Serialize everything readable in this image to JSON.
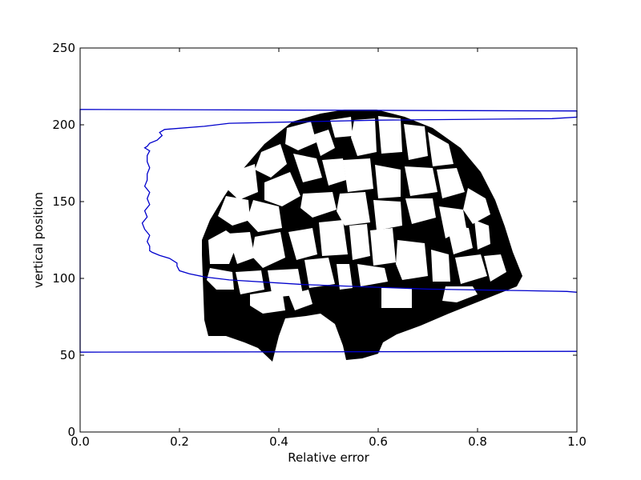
{
  "chart_data": {
    "type": "line",
    "xlabel": "Relative error",
    "ylabel": "vertical position",
    "xlim": [
      0.0,
      1.0
    ],
    "ylim": [
      0,
      250
    ],
    "x_ticks": [
      {
        "value": 0.0,
        "label": "0.0"
      },
      {
        "value": 0.2,
        "label": "0.2"
      },
      {
        "value": 0.4,
        "label": "0.4"
      },
      {
        "value": 0.6,
        "label": "0.6"
      },
      {
        "value": 0.8,
        "label": "0.8"
      },
      {
        "value": 1.0,
        "label": "1.0"
      }
    ],
    "y_ticks": [
      {
        "value": 0,
        "label": "0"
      },
      {
        "value": 50,
        "label": "50"
      },
      {
        "value": 100,
        "label": "100"
      },
      {
        "value": 150,
        "label": "150"
      },
      {
        "value": 200,
        "label": "200"
      },
      {
        "value": 250,
        "label": "250"
      }
    ],
    "grid": false,
    "series_color": "#0000cc",
    "background_image": "binary-cellular-structure-mask",
    "series": [
      {
        "x": [
          1.0,
          0.0,
          0.0,
          0.0,
          1.0,
          1.0,
          1.0,
          0.95,
          0.6,
          0.3,
          0.25,
          0.17,
          0.16,
          0.165,
          0.155,
          0.14,
          0.135,
          0.13,
          0.14,
          0.135,
          0.135,
          0.14,
          0.135,
          0.135,
          0.13,
          0.14,
          0.135,
          0.14,
          0.13,
          0.135,
          0.125,
          0.13,
          0.14,
          0.135,
          0.14,
          0.14,
          0.145,
          0.16,
          0.18,
          0.195,
          0.195,
          0.2,
          0.22,
          0.25,
          0.3,
          0.45,
          0.7,
          0.9,
          0.98,
          1.0
        ],
        "y": [
          52.5,
          52.0,
          52.0,
          210.0,
          209.0,
          205.0,
          205.0,
          204.0,
          203.0,
          201.0,
          199.0,
          197.0,
          195.0,
          193.0,
          190.0,
          188.0,
          186.0,
          185.0,
          183.0,
          180.0,
          176.0,
          172.0,
          168.0,
          164.0,
          160.0,
          156.0,
          152.0,
          148.0,
          144.0,
          140.0,
          136.0,
          132.0,
          128.0,
          124.0,
          121.0,
          118.0,
          117.0,
          115.0,
          113.0,
          110.0,
          108.0,
          105.0,
          103.0,
          101.0,
          99.0,
          96.0,
          93.0,
          92.0,
          91.5,
          91.0
        ]
      }
    ]
  }
}
